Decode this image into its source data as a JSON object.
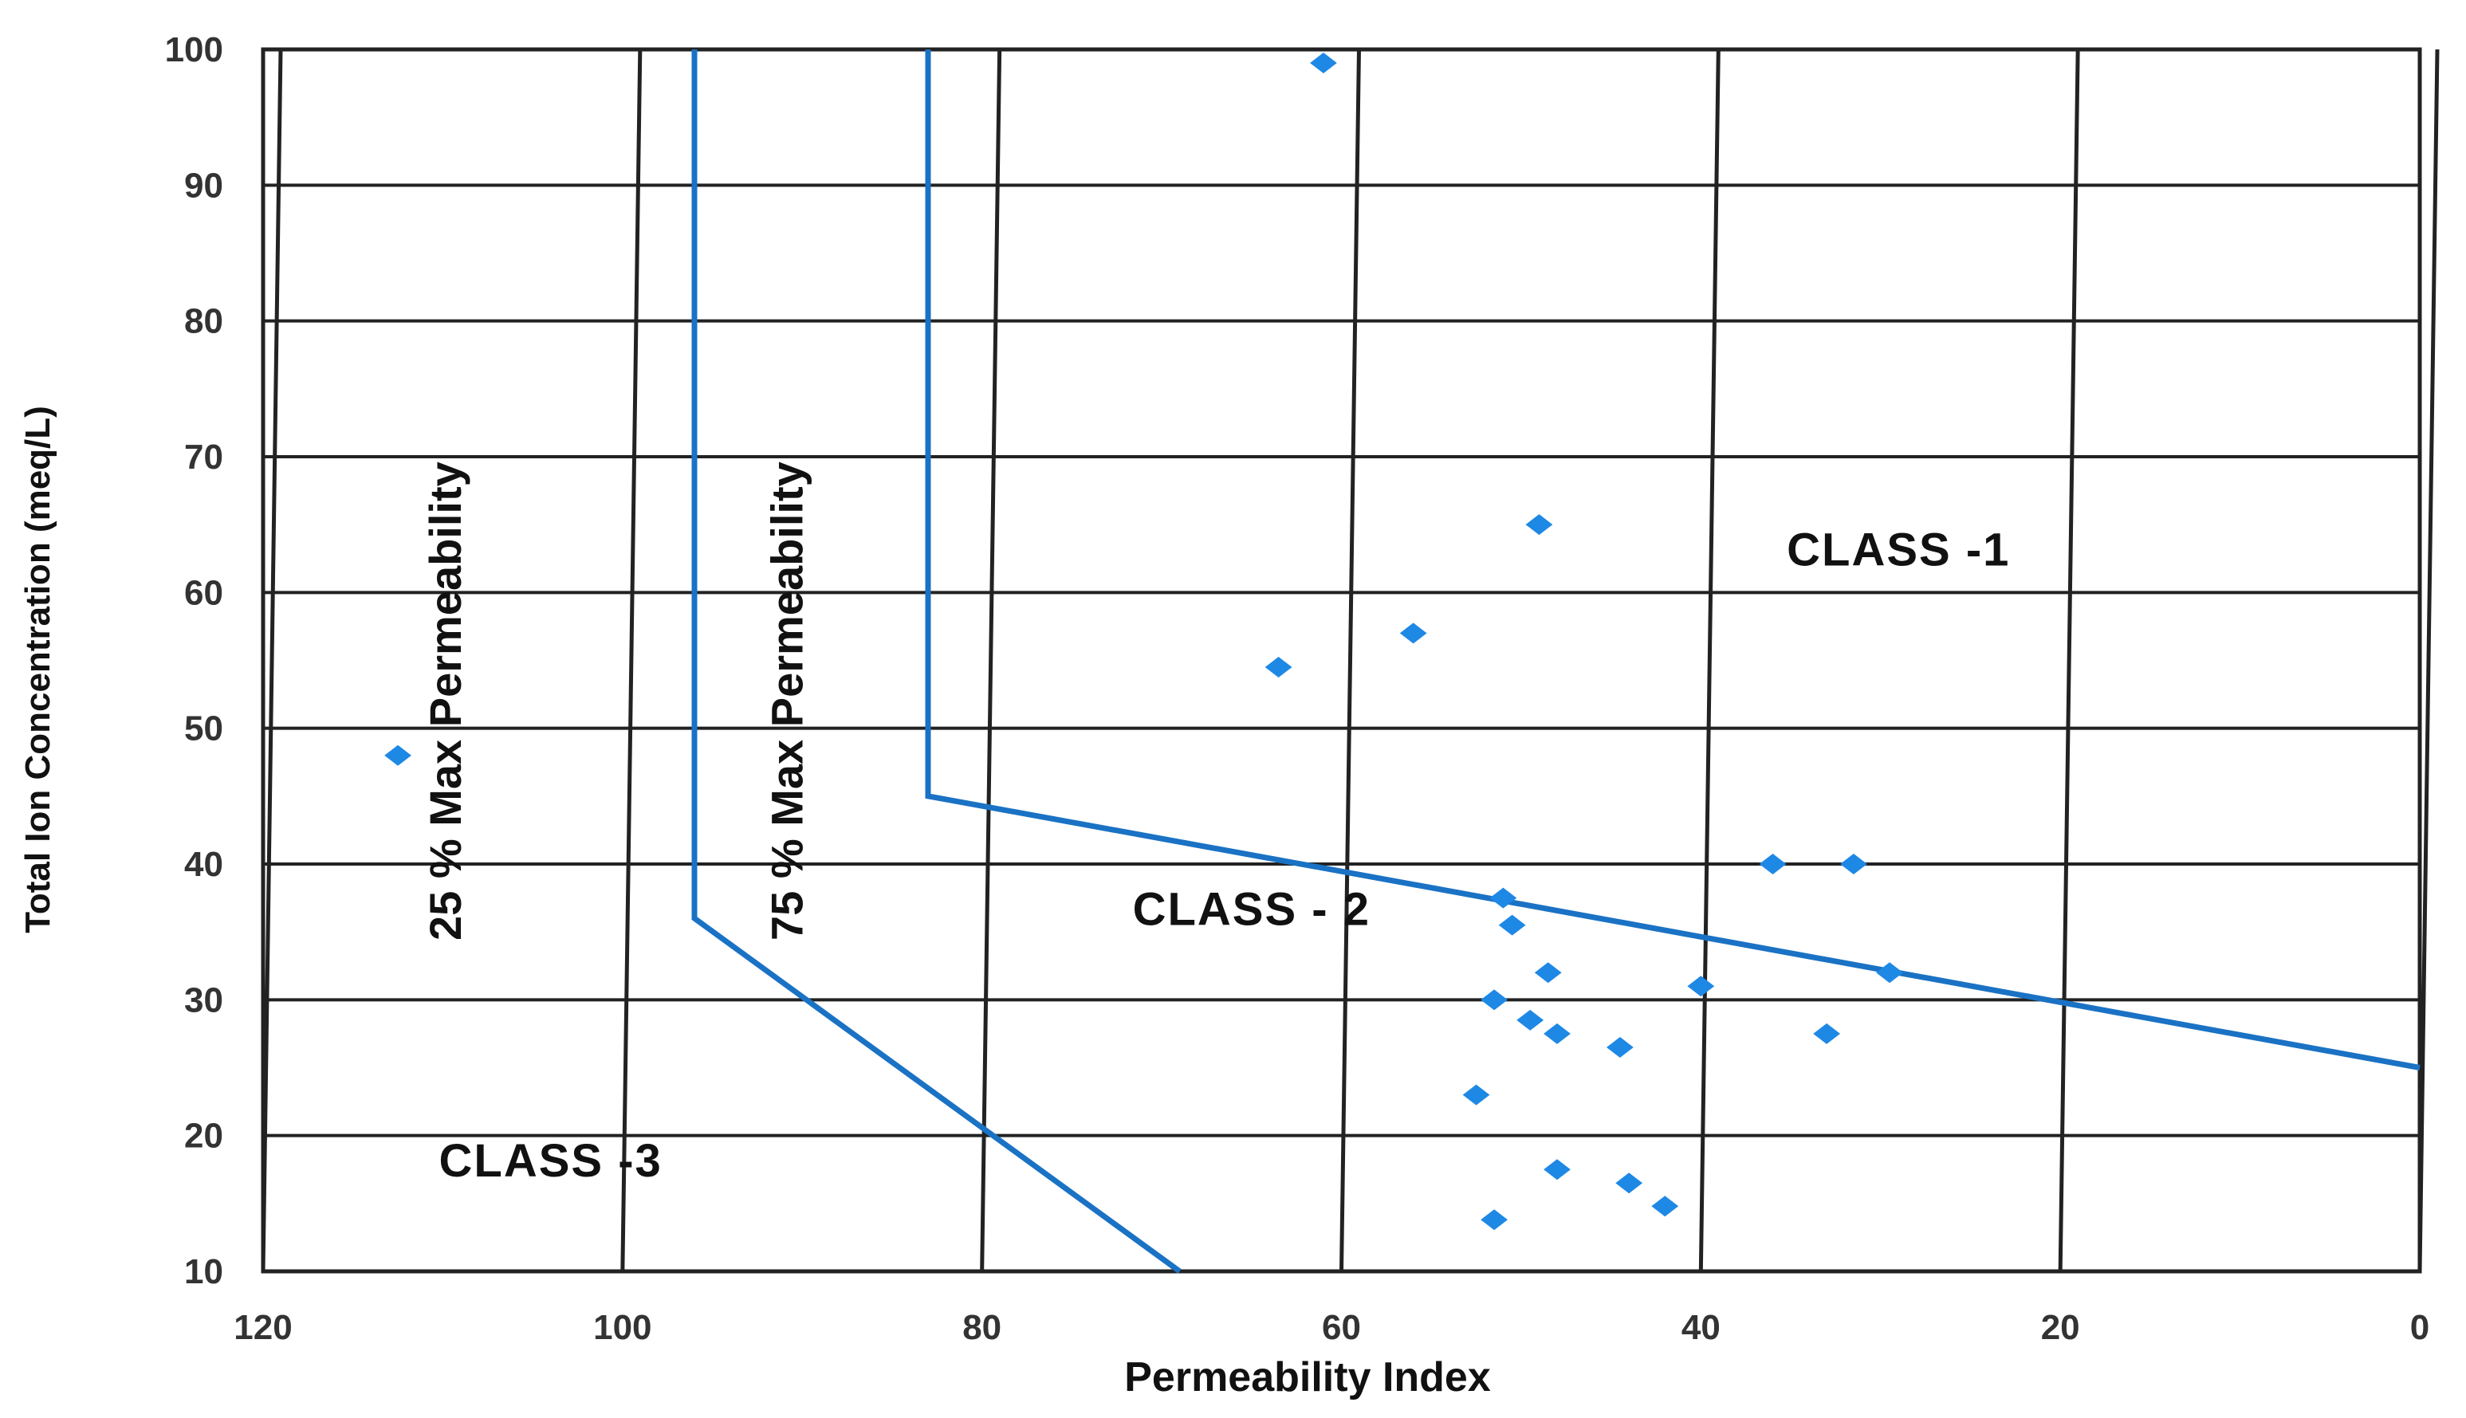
{
  "chart_data": {
    "type": "scatter",
    "title": "",
    "xlabel": "Permeability Index",
    "ylabel": "Total Ion Concentration (meq/L)",
    "xlim": [
      120,
      0
    ],
    "x_reversed": true,
    "ylim": [
      10,
      100
    ],
    "x_ticks": [
      "120",
      "100",
      "80",
      "60",
      "40",
      "20",
      "0"
    ],
    "x_tick_values": [
      120,
      100,
      80,
      60,
      40,
      20,
      0
    ],
    "y_ticks": [
      "10",
      "20",
      "30",
      "40",
      "50",
      "60",
      "70",
      "80",
      "90",
      "100"
    ],
    "y_tick_values": [
      10,
      20,
      30,
      40,
      50,
      60,
      70,
      80,
      90,
      100
    ],
    "grid": true,
    "colors": {
      "points": "#1e88e5",
      "curves": "#1a72c4",
      "grid": "#222222"
    },
    "series": [
      {
        "points": [
          [
            61,
            99
          ],
          [
            49,
            65
          ],
          [
            56,
            57
          ],
          [
            63.5,
            54.5
          ],
          [
            112.5,
            48
          ],
          [
            36,
            40
          ],
          [
            31.5,
            40
          ],
          [
            51,
            37.5
          ],
          [
            50.5,
            35.5
          ],
          [
            48.5,
            32
          ],
          [
            40,
            31
          ],
          [
            29.5,
            32
          ],
          [
            51.5,
            30
          ],
          [
            49.5,
            28.5
          ],
          [
            48,
            27.5
          ],
          [
            44.5,
            26.5
          ],
          [
            33,
            27.5
          ],
          [
            52.5,
            23
          ],
          [
            48,
            17.5
          ],
          [
            44,
            16.5
          ],
          [
            42,
            14.8
          ],
          [
            51.5,
            13.8
          ]
        ]
      }
    ],
    "boundary_curves": [
      {
        "label": "25 % Max Permeability",
        "points": [
          [
            96,
            100
          ],
          [
            96,
            36
          ],
          [
            69,
            10
          ]
        ]
      },
      {
        "label": "75 % Max Permeability",
        "points": [
          [
            83,
            100
          ],
          [
            83,
            45
          ],
          [
            0,
            25
          ]
        ]
      }
    ],
    "region_labels": [
      {
        "text": "CLASS -1",
        "x": 29,
        "y": 62
      },
      {
        "text": "CLASS - 2",
        "x": 65,
        "y": 35.5
      },
      {
        "text": "CLASS -3",
        "x": 104,
        "y": 17
      }
    ],
    "curve_label_positions": [
      {
        "label": "25 % Max Permeability",
        "x": 109,
        "y": 52
      },
      {
        "label": "75 % Max Permeability",
        "x": 90,
        "y": 52
      }
    ]
  }
}
